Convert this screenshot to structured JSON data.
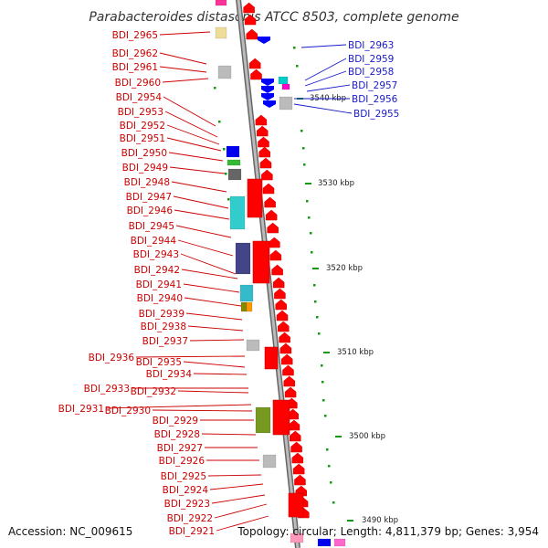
{
  "title": "Parabacteroides distasonis ATCC 8503, complete genome",
  "footer": {
    "accession": "Accession: NC_009615",
    "topology": "Topology: circular; Length: 4,811,379 bp; Genes: 3,954"
  },
  "colors": {
    "forward_gene": "#ff0000",
    "reverse_gene": "#0000ff",
    "left_label": "#cc0000",
    "right_label": "#1a1acc",
    "backbone": "#888888",
    "tick": "#119911"
  },
  "kbp_labels": [
    "3540 kbp",
    "3530 kbp",
    "3520 kbp",
    "3510 kbp",
    "3500 kbp",
    "3490 kbp"
  ],
  "left_genes": [
    "BDI_2965",
    "BDI_2962",
    "BDI_2961",
    "BDI_2960",
    "BDI_2954",
    "BDI_2953",
    "BDI_2952",
    "BDI_2951",
    "BDI_2950",
    "BDI_2949",
    "BDI_2948",
    "BDI_2947",
    "BDI_2946",
    "BDI_2945",
    "BDI_2944",
    "BDI_2943",
    "BDI_2942",
    "BDI_2941",
    "BDI_2940",
    "BDI_2939",
    "BDI_2938",
    "BDI_2937",
    "BDI_2936",
    "BDI_2935",
    "BDI_2934",
    "BDI_2933",
    "BDI_2932",
    "BDI_2931",
    "BDI_2930",
    "BDI_2929",
    "BDI_2928",
    "BDI_2927",
    "BDI_2926",
    "BDI_2925",
    "BDI_2924",
    "BDI_2923",
    "BDI_2922",
    "BDI_2921"
  ],
  "right_genes": [
    "BDI_2963",
    "BDI_2959",
    "BDI_2958",
    "BDI_2957",
    "BDI_2956",
    "BDI_2955"
  ]
}
